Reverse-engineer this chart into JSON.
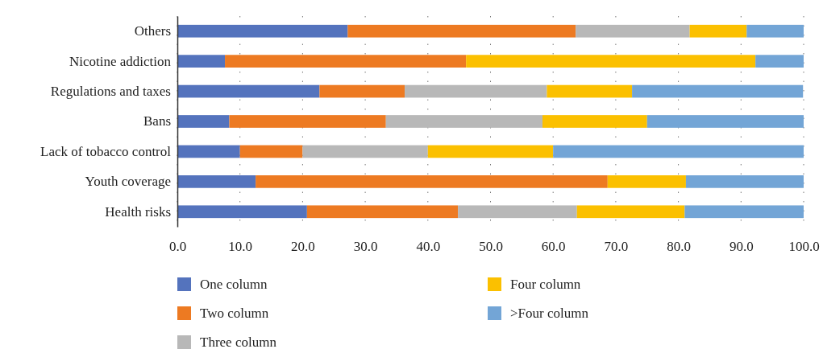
{
  "chart_data": {
    "type": "bar",
    "orientation": "horizontal",
    "stacked": true,
    "categories": [
      "Others",
      "Nicotine addiction",
      "Regulations and taxes",
      "Bans",
      "Lack of tobacco control",
      "Youth coverage",
      "Health risks"
    ],
    "series": [
      {
        "name": "One column",
        "color": "#5473bd",
        "values": [
          27.2,
          7.6,
          22.7,
          8.3,
          10.0,
          12.5,
          20.7
        ]
      },
      {
        "name": "Two column",
        "color": "#ed7a22",
        "values": [
          36.4,
          38.5,
          13.6,
          25.0,
          10.0,
          56.2,
          24.1
        ]
      },
      {
        "name": "Three column",
        "color": "#b8b8b8",
        "values": [
          18.2,
          0,
          22.7,
          25.0,
          20.0,
          0,
          19.0
        ]
      },
      {
        "name": "Four column",
        "color": "#fbc000",
        "values": [
          9.1,
          46.2,
          13.6,
          16.7,
          20.0,
          12.5,
          17.2
        ]
      },
      {
        "name": ">Four column",
        "color": "#73a5d6",
        "values": [
          9.1,
          7.7,
          27.3,
          25.0,
          40.0,
          18.8,
          19.0
        ]
      }
    ],
    "xlim": [
      0,
      100
    ],
    "xticks": [
      {
        "value": 0,
        "label": "0.0"
      },
      {
        "value": 10,
        "label": "10.0"
      },
      {
        "value": 20,
        "label": "20.0"
      },
      {
        "value": 30,
        "label": "30.0"
      },
      {
        "value": 40,
        "label": "40.0"
      },
      {
        "value": 50,
        "label": "50.0"
      },
      {
        "value": 60,
        "label": "60.0"
      },
      {
        "value": 70,
        "label": "70.0"
      },
      {
        "value": 80,
        "label": "80.0"
      },
      {
        "value": 90,
        "label": "90.0"
      },
      {
        "value": 100,
        "label": "100.0"
      }
    ],
    "grid": "x",
    "legend": "bottom"
  }
}
